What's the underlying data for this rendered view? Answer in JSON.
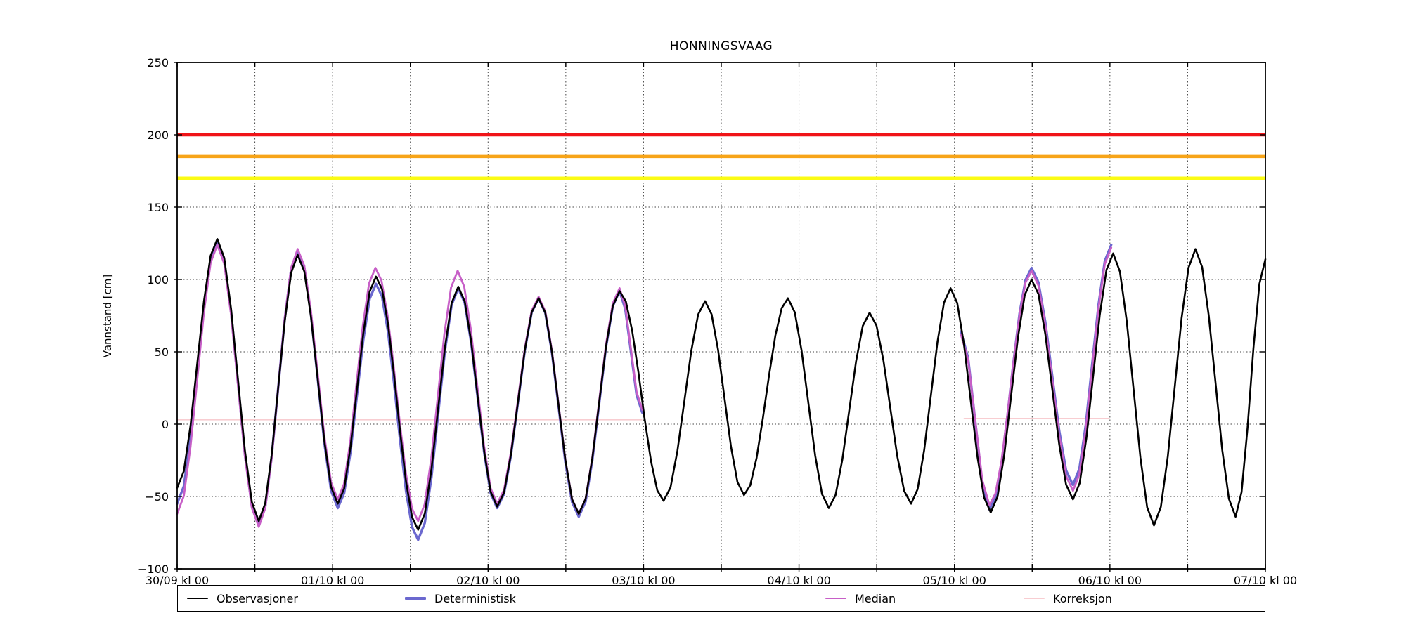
{
  "chart_data": {
    "type": "line",
    "title": "HONNINGSVAAG",
    "ylabel": "Vannstand [cm]",
    "xlabel": "",
    "ylim": [
      -100,
      250
    ],
    "xlim_hours": [
      0,
      168
    ],
    "grid": "dotted, every 12 h vertical, every 50 cm horizontal",
    "legend_position": "below axes, horizontal box",
    "yticks": [
      {
        "v": -100,
        "label": "−100"
      },
      {
        "v": -50,
        "label": "−50"
      },
      {
        "v": 0,
        "label": "0"
      },
      {
        "v": 50,
        "label": "50"
      },
      {
        "v": 100,
        "label": "100"
      },
      {
        "v": 150,
        "label": "150"
      },
      {
        "v": 200,
        "label": "200"
      },
      {
        "v": 250,
        "label": "250"
      }
    ],
    "xticks": [
      {
        "t": 0,
        "label": "30/09 kl 00"
      },
      {
        "t": 24,
        "label": "01/10 kl 00"
      },
      {
        "t": 48,
        "label": "02/10 kl 00"
      },
      {
        "t": 72,
        "label": "03/10 kl 00"
      },
      {
        "t": 96,
        "label": "04/10 kl 00"
      },
      {
        "t": 120,
        "label": "05/10 kl 00"
      },
      {
        "t": 144,
        "label": "06/10 kl 00"
      },
      {
        "t": 168,
        "label": "07/10 kl 00"
      }
    ],
    "xtick_minor_every_hours": 12,
    "thresholds": [
      {
        "name": "red-warning-level",
        "value": 200,
        "color": "#f01418"
      },
      {
        "name": "orange-warning-level",
        "value": 185,
        "color": "#f7a418"
      },
      {
        "name": "yellow-warning-level",
        "value": 170,
        "color": "#fbfb14"
      }
    ],
    "series": [
      {
        "name": "Observasjoner",
        "color": "#000000",
        "width": 2.6,
        "segments": [
          [
            [
              0,
              -44
            ],
            [
              6.2,
              128
            ],
            [
              12.6,
              -67
            ],
            [
              18.6,
              117
            ],
            [
              24.8,
              -55
            ],
            [
              30.7,
              102
            ],
            [
              37.2,
              -73
            ],
            [
              43.4,
              95
            ],
            [
              49.4,
              -57
            ],
            [
              55.8,
              87
            ],
            [
              62,
              -62
            ],
            [
              68.3,
              92
            ],
            [
              75.1,
              -53
            ],
            [
              81.5,
              85
            ],
            [
              87.5,
              -49
            ],
            [
              94.3,
              87
            ],
            [
              100.6,
              -58
            ],
            [
              106.9,
              77
            ],
            [
              113.3,
              -55
            ],
            [
              119.4,
              94
            ],
            [
              125.6,
              -61
            ],
            [
              131.9,
              100
            ],
            [
              138.3,
              -52
            ],
            [
              144.5,
              118
            ],
            [
              150.8,
              -70
            ],
            [
              157.2,
              121
            ],
            [
              163.4,
              -64
            ],
            [
              168,
              114
            ]
          ]
        ]
      },
      {
        "name": "Deterministisk",
        "color": "#6b68cf",
        "width": 3.4,
        "segments": [
          [
            [
              0,
              -55
            ],
            [
              6.2,
              126
            ],
            [
              12.6,
              -70
            ],
            [
              18.6,
              120
            ],
            [
              24.8,
              -58
            ],
            [
              30.7,
              97
            ],
            [
              37.2,
              -80
            ],
            [
              43.4,
              94
            ],
            [
              49.4,
              -58
            ],
            [
              55.8,
              87
            ],
            [
              62,
              -64
            ],
            [
              68.3,
              92
            ],
            [
              71.8,
              8
            ]
          ],
          [
            [
              121,
              64
            ],
            [
              125.4,
              -59
            ],
            [
              131.9,
              108
            ],
            [
              138.3,
              -42
            ],
            [
              144.2,
              124
            ]
          ]
        ]
      },
      {
        "name": "Median",
        "color": "#c75fc7",
        "width": 2.8,
        "segments": [
          [
            [
              0,
              -62
            ],
            [
              6.2,
              124
            ],
            [
              12.6,
              -71
            ],
            [
              18.6,
              121
            ],
            [
              24.8,
              -52
            ],
            [
              30.6,
              108
            ],
            [
              37.2,
              -67
            ],
            [
              43.3,
              106
            ],
            [
              49.4,
              -55
            ],
            [
              55.8,
              88
            ],
            [
              62,
              -62
            ],
            [
              68.3,
              94
            ],
            [
              71.8,
              10
            ]
          ],
          [
            [
              121,
              62
            ],
            [
              125.4,
              -56
            ],
            [
              131.9,
              106
            ],
            [
              138.3,
              -46
            ],
            [
              144.2,
              122
            ]
          ]
        ]
      },
      {
        "name": "Korreksjon",
        "color": "#f8cdd1",
        "width": 1.6,
        "segments": [
          [
            [
              0,
              3
            ],
            [
              71.7,
              3
            ]
          ],
          [
            [
              121.5,
              4
            ],
            [
              143.9,
              4
            ]
          ]
        ]
      }
    ]
  }
}
